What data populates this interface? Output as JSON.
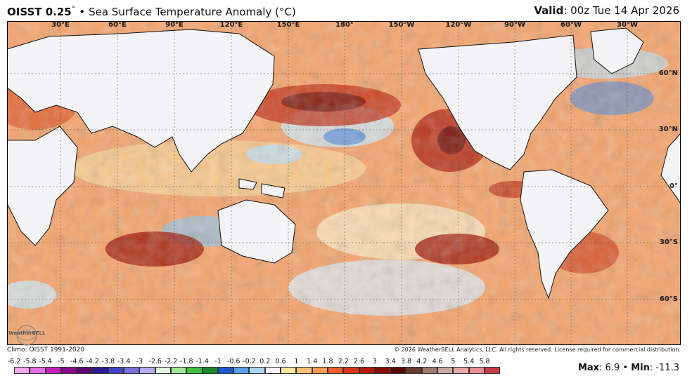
{
  "header": {
    "title": "OISST 0.25",
    "title_degree": "°",
    "bullet": "•",
    "subtitle": "Sea Surface Temperature Anomaly (°C)",
    "valid_label": "Valid",
    "valid_value": ": 00z Tue 14 Apr 2026"
  },
  "map": {
    "lon_labels": [
      "30°E",
      "60°E",
      "90°E",
      "120°E",
      "150°E",
      "180°",
      "150°W",
      "120°W",
      "90°W",
      "60°W",
      "30°W"
    ],
    "lat_labels": [
      "60°N",
      "30°N",
      "0°",
      "30°S",
      "60°S"
    ],
    "colors": {
      "ocean_base": "#f5a46c",
      "land": "#f4f4f6",
      "warm_strong": "#a81e0c",
      "warm_very_strong": "#5a0c08",
      "cool": "#9fd0ee",
      "cool_strong": "#2a6ad8"
    }
  },
  "footer": {
    "logo_text": "WeatherBELL",
    "climo": "Climo: OISST 1991-2020",
    "copyright": "© 2026 WeatherBELL Analytics, LLC. All rights reserved. License required for commercial distribution.",
    "max_label": "Max",
    "max_value": ": 6.9",
    "separator": "•",
    "min_label": "Min",
    "min_value": ": -11.3"
  },
  "colorbar": {
    "labels": [
      "-6.2",
      "-5.8",
      "-5.4",
      "-5",
      "-4.6",
      "-4.2",
      "-3.8",
      "-3.4",
      "-3",
      "-2.6",
      "-2.2",
      "-1.8",
      "-1.4",
      "-1",
      "-0.6",
      "-0.2",
      "0.2",
      "0.6",
      "1",
      "1.4",
      "1.8",
      "2.2",
      "2.6",
      "3",
      "3.4",
      "3.8",
      "4.2",
      "4.6",
      "5",
      "5.4",
      "5.8"
    ],
    "colors": [
      "#f3a8ec",
      "#e46ce4",
      "#c81ec0",
      "#8a0a8c",
      "#5c0870",
      "#2c1a9a",
      "#4040c8",
      "#7a72dc",
      "#b4aaf0",
      "#e4f8e0",
      "#a0ec9c",
      "#40c040",
      "#188a2c",
      "#1c58d0",
      "#5aa0ec",
      "#a8d8f4",
      "#fcf4fc",
      "#fce8a4",
      "#fcc078",
      "#fc9c50",
      "#f4602c",
      "#dc3418",
      "#b41a0c",
      "#8a0a06",
      "#5c0604",
      "#6a3a30",
      "#a2786c",
      "#c8a8a4",
      "#e8a8a8",
      "#ec8c94",
      "#c83a46"
    ]
  }
}
